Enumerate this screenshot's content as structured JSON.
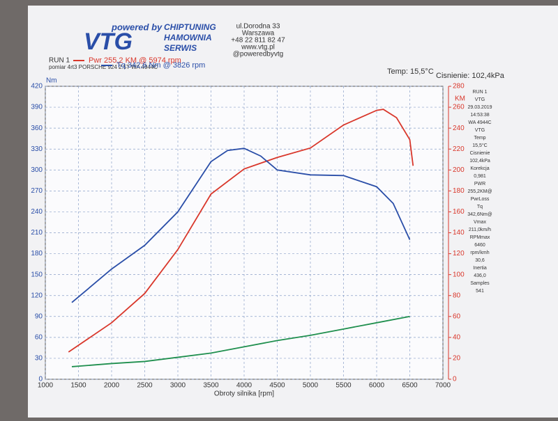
{
  "header": {
    "logo_top": "powered by",
    "logo": "VTG",
    "company": [
      "CHIPTUNING",
      "HAMOWNIA",
      "SERWIS"
    ],
    "address": [
      "ul.Dorodna 33",
      "Warszawa",
      "+48 22 811 82 47",
      "www.vtg.pl",
      "@poweredbyvtg"
    ],
    "run": "RUN 1",
    "vehicle": "pomiar 4rt3 PORSCHE 924 2.5T WA 4944C",
    "temp": "Temp: 15,5°C",
    "pressure": "Cisnienie: 102,4kPa"
  },
  "side_panel": [
    "RUN 1",
    "VTG",
    "29.03.2019",
    "14:53:38",
    "WA 4944C",
    "VTG",
    "Temp",
    "15,5°C",
    "Cisnienie",
    "102,4kPa",
    "Korekcja",
    "0,981",
    "PWR",
    "255,2KM@",
    "PwrLoss",
    "Tq",
    "342,6Nm@",
    "Vmax",
    "211,0km/h",
    "RPMmax",
    "6460",
    "rpm/kmh",
    "30,6",
    "Inertia",
    "436,0",
    "Samples",
    "541"
  ],
  "chart_data": {
    "type": "line",
    "x_label": "Obroty silnika [rpm]",
    "y_label": "Nm",
    "y2_label": "KM",
    "xlim": [
      1000,
      7000
    ],
    "xticks": [
      1000,
      1500,
      2000,
      2500,
      3000,
      3500,
      4000,
      4500,
      5000,
      5500,
      6000,
      6500,
      7000
    ],
    "ylim": [
      0,
      420
    ],
    "yticks": [
      0,
      30,
      60,
      90,
      120,
      150,
      180,
      210,
      240,
      270,
      300,
      330,
      360,
      390,
      420
    ],
    "y2lim": [
      0,
      280
    ],
    "y2ticks": [
      0,
      20,
      40,
      60,
      80,
      100,
      120,
      140,
      160,
      180,
      200,
      220,
      240,
      260,
      280
    ],
    "grid": true,
    "series": [
      {
        "name": "Pwr 255,2 KM @ 5974 rpm",
        "color": "#d9372b",
        "axis": "y2",
        "x": [
          1350,
          2000,
          2500,
          3000,
          3500,
          4000,
          4500,
          5000,
          5500,
          6000,
          6100,
          6300,
          6500,
          6550
        ],
        "values": [
          26,
          54,
          82,
          124,
          177,
          201,
          212,
          221,
          243,
          257,
          258,
          250,
          229,
          204
        ]
      },
      {
        "name": "Tq 342,6 Nm @ 3826 rpm",
        "color": "#2a4ea8",
        "x": [
          1400,
          2000,
          2500,
          3000,
          3500,
          3750,
          4000,
          4250,
          4500,
          5000,
          5500,
          6000,
          6250,
          6500
        ],
        "values": [
          110,
          158,
          192,
          240,
          312,
          328,
          331,
          320,
          300,
          293,
          292,
          276,
          252,
          200
        ]
      },
      {
        "color": "#1f8f4e",
        "axis": "y2",
        "x": [
          1400,
          2000,
          2500,
          3000,
          3500,
          4000,
          4500,
          5000,
          5500,
          6000,
          6500
        ],
        "values": [
          12,
          15,
          17,
          21,
          25,
          31,
          37,
          42,
          48,
          54,
          60
        ]
      }
    ]
  }
}
